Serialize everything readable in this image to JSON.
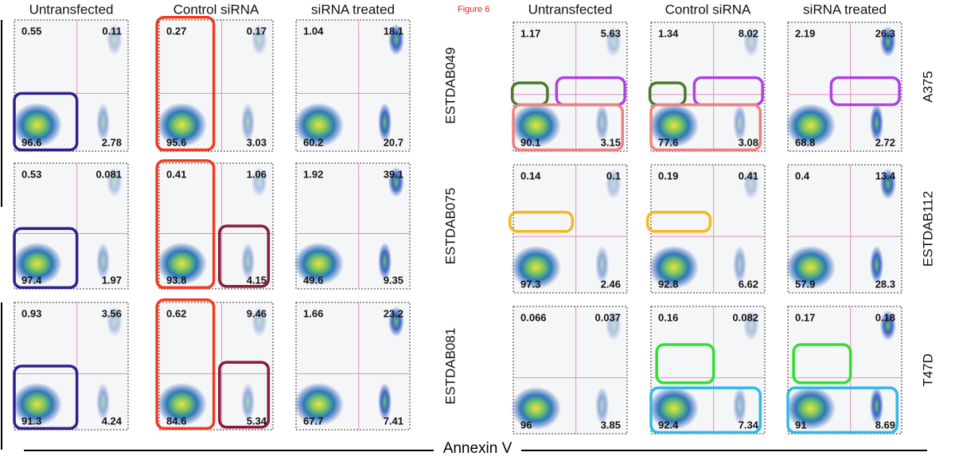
{
  "figure_label": "Figure 6",
  "x_axis_label": "Annexin V",
  "groups": [
    {
      "columns": [
        "Untransfected",
        "Control siRNA",
        "siRNA treated"
      ],
      "rows": [
        {
          "label": "ESTDAB049",
          "cells": [
            [
              0.55,
              0.11,
              96.6,
              2.78
            ],
            [
              0.27,
              0.17,
              95.6,
              3.03
            ],
            [
              1.04,
              18.1,
              60.2,
              20.7
            ]
          ]
        },
        {
          "label": "ESTDAB075",
          "cells": [
            [
              0.53,
              0.081,
              97.4,
              1.97
            ],
            [
              0.41,
              1.06,
              93.8,
              4.15
            ],
            [
              1.92,
              39.1,
              49.6,
              9.35
            ]
          ]
        },
        {
          "label": "ESTDAB081",
          "cells": [
            [
              0.93,
              3.56,
              91.3,
              4.24
            ],
            [
              0.62,
              9.46,
              84.6,
              5.34
            ],
            [
              1.66,
              23.2,
              67.7,
              7.41
            ]
          ]
        }
      ]
    },
    {
      "columns": [
        "Untransfected",
        "Control siRNA",
        "siRNA treated"
      ],
      "rows": [
        {
          "label": "A375",
          "cells": [
            [
              1.17,
              5.63,
              90.1,
              3.15
            ],
            [
              1.34,
              8.02,
              77.6,
              3.08
            ],
            [
              2.19,
              26.3,
              68.8,
              2.72
            ]
          ]
        },
        {
          "label": "ESTDAB112",
          "cells": [
            [
              0.14,
              0.1,
              97.3,
              2.46
            ],
            [
              0.19,
              0.41,
              92.8,
              6.62
            ],
            [
              0.4,
              13.4,
              57.9,
              28.3
            ]
          ]
        },
        {
          "label": "T47D",
          "cells": [
            [
              0.066,
              0.037,
              96,
              3.85
            ],
            [
              0.16,
              0.082,
              92.4,
              7.34
            ],
            [
              0.17,
              0.18,
              91,
              8.69
            ]
          ]
        }
      ]
    }
  ]
}
